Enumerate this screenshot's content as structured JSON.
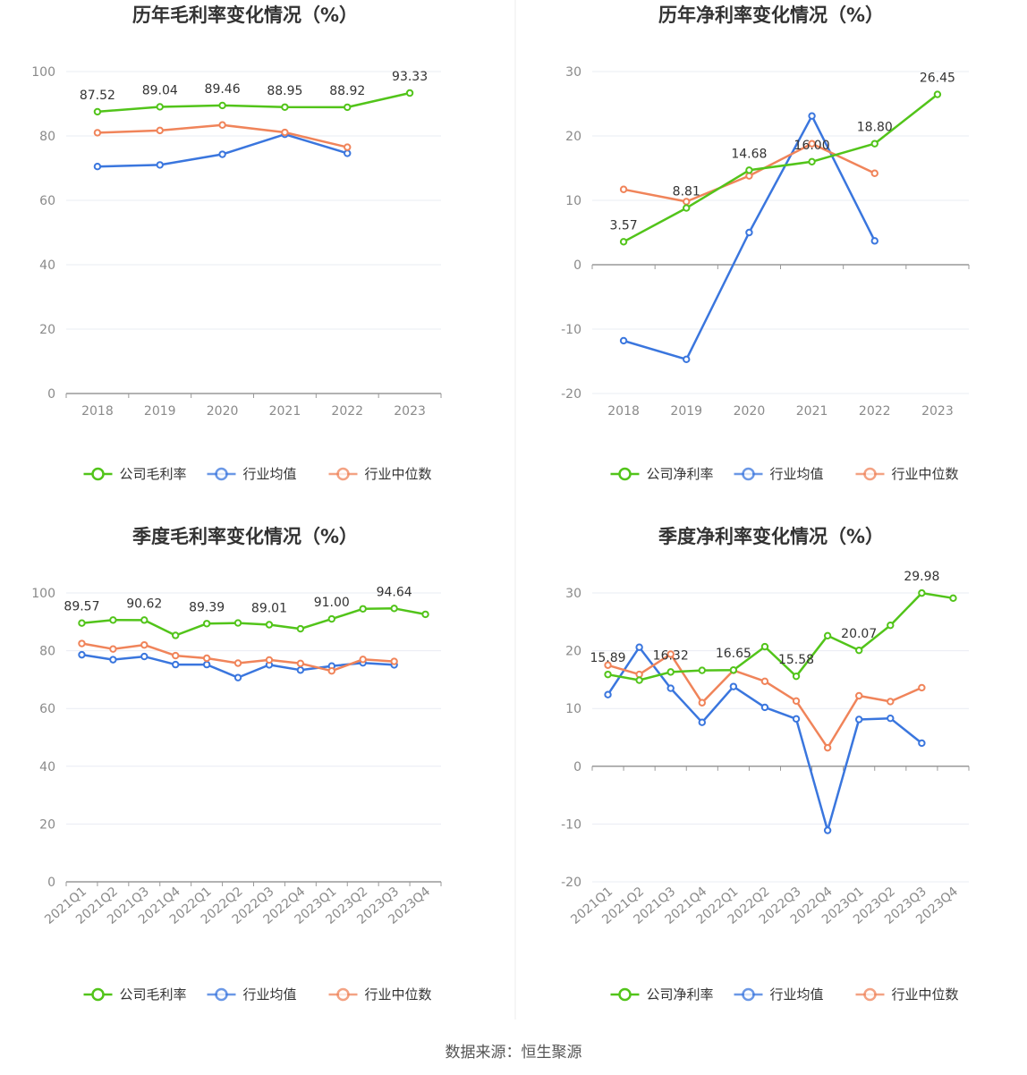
{
  "source": "数据来源：恒生聚源",
  "colors": {
    "company": "#52c41a",
    "avg": "#3a76de",
    "median": "#f0845a",
    "grid": "#e9ecf3",
    "axis": "#999999"
  },
  "chart_data": [
    {
      "type": "line",
      "title": "历年毛利率变化情况（%）",
      "categories": [
        "2018",
        "2019",
        "2020",
        "2021",
        "2022",
        "2023"
      ],
      "ylim": [
        0,
        100
      ],
      "yticks": [
        0,
        20,
        40,
        60,
        80,
        100
      ],
      "grid": true,
      "legend_position": "bottom",
      "series": [
        {
          "name": "公司毛利率",
          "key": "company",
          "values": [
            87.52,
            89.04,
            89.46,
            88.95,
            88.92,
            93.33
          ],
          "labels": [
            "87.52",
            "89.04",
            "89.46",
            "88.95",
            "88.92",
            "93.33"
          ]
        },
        {
          "name": "行业均值",
          "key": "avg",
          "values": [
            70.5,
            71.0,
            74.3,
            80.5,
            74.6,
            null
          ]
        },
        {
          "name": "行业中位数",
          "key": "median",
          "values": [
            81.0,
            81.7,
            83.4,
            81.1,
            76.5,
            null
          ]
        }
      ]
    },
    {
      "type": "line",
      "title": "历年净利率变化情况（%）",
      "categories": [
        "2018",
        "2019",
        "2020",
        "2021",
        "2022",
        "2023"
      ],
      "ylim": [
        -20,
        30
      ],
      "yticks": [
        -20,
        -10,
        0,
        10,
        20,
        30
      ],
      "grid": true,
      "legend_position": "bottom",
      "series": [
        {
          "name": "公司净利率",
          "key": "company",
          "values": [
            3.57,
            8.81,
            14.68,
            16.0,
            18.8,
            26.45
          ],
          "labels": [
            "3.57",
            "8.81",
            "14.68",
            "16.00",
            "18.80",
            "26.45"
          ]
        },
        {
          "name": "行业均值",
          "key": "avg",
          "values": [
            -11.8,
            -14.7,
            5.0,
            23.1,
            3.7,
            null
          ]
        },
        {
          "name": "行业中位数",
          "key": "median",
          "values": [
            11.7,
            9.8,
            13.8,
            18.8,
            14.2,
            null
          ]
        }
      ]
    },
    {
      "type": "line",
      "title": "季度毛利率变化情况（%）",
      "categories": [
        "2021Q1",
        "2021Q2",
        "2021Q3",
        "2021Q4",
        "2022Q1",
        "2022Q2",
        "2022Q3",
        "2022Q4",
        "2023Q1",
        "2023Q2",
        "2023Q3",
        "2023Q4"
      ],
      "ylim": [
        0,
        100
      ],
      "yticks": [
        0,
        20,
        40,
        60,
        80,
        100
      ],
      "grid": true,
      "legend_position": "bottom",
      "series": [
        {
          "name": "公司毛利率",
          "key": "company",
          "values": [
            89.57,
            90.62,
            90.6,
            85.3,
            89.39,
            89.6,
            89.01,
            87.6,
            91.0,
            94.5,
            94.64,
            92.6
          ],
          "labels": [
            "89.57",
            null,
            "90.62",
            null,
            "89.39",
            null,
            "89.01",
            null,
            "91.00",
            null,
            "94.64",
            null
          ]
        },
        {
          "name": "行业均值",
          "key": "avg",
          "values": [
            78.6,
            76.9,
            78.0,
            75.2,
            75.2,
            70.7,
            75.1,
            73.3,
            74.7,
            75.8,
            75.1,
            null
          ]
        },
        {
          "name": "行业中位数",
          "key": "median",
          "values": [
            82.5,
            80.6,
            82.0,
            78.3,
            77.4,
            75.7,
            76.8,
            75.6,
            73.0,
            77.0,
            76.3,
            null
          ]
        }
      ]
    },
    {
      "type": "line",
      "title": "季度净利率变化情况（%）",
      "categories": [
        "2021Q1",
        "2021Q2",
        "2021Q3",
        "2021Q4",
        "2022Q1",
        "2022Q2",
        "2022Q3",
        "2022Q4",
        "2023Q1",
        "2023Q2",
        "2023Q3",
        "2023Q4"
      ],
      "ylim": [
        -20,
        30
      ],
      "yticks": [
        -20,
        -10,
        0,
        10,
        20,
        30
      ],
      "grid": true,
      "legend_position": "bottom",
      "series": [
        {
          "name": "公司净利率",
          "key": "company",
          "values": [
            15.89,
            14.9,
            16.32,
            16.6,
            16.65,
            20.7,
            15.58,
            22.6,
            20.07,
            24.4,
            29.98,
            29.1
          ],
          "labels": [
            "15.89",
            null,
            "16.32",
            null,
            "16.65",
            null,
            "15.58",
            null,
            "20.07",
            null,
            "29.98",
            null
          ]
        },
        {
          "name": "行业均值",
          "key": "avg",
          "values": [
            12.4,
            20.6,
            13.5,
            7.6,
            13.8,
            10.2,
            8.2,
            -11.1,
            8.1,
            8.3,
            4.0,
            null
          ]
        },
        {
          "name": "行业中位数",
          "key": "median",
          "values": [
            17.5,
            15.9,
            19.4,
            11.0,
            16.6,
            14.7,
            11.3,
            3.2,
            12.2,
            11.2,
            13.6,
            null
          ]
        }
      ]
    }
  ]
}
